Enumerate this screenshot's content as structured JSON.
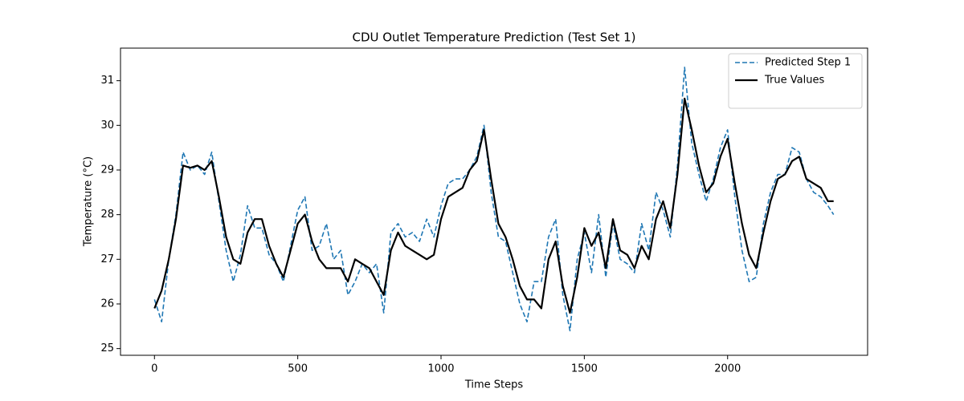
{
  "chart_data": {
    "type": "line",
    "title": "CDU Outlet Temperature Prediction (Test Set 1)",
    "x_label": "Time Steps",
    "y_label": "Temperature (°C)",
    "x": [
      0,
      25,
      50,
      75,
      100,
      125,
      150,
      175,
      200,
      225,
      250,
      275,
      300,
      325,
      350,
      375,
      400,
      425,
      450,
      475,
      500,
      525,
      550,
      575,
      600,
      625,
      650,
      675,
      700,
      725,
      750,
      775,
      800,
      825,
      850,
      875,
      900,
      925,
      950,
      975,
      1000,
      1025,
      1050,
      1075,
      1100,
      1125,
      1150,
      1175,
      1200,
      1225,
      1250,
      1275,
      1300,
      1325,
      1350,
      1375,
      1400,
      1425,
      1450,
      1475,
      1500,
      1525,
      1550,
      1575,
      1600,
      1625,
      1650,
      1675,
      1700,
      1725,
      1750,
      1775,
      1800,
      1825,
      1850,
      1875,
      1900,
      1925,
      1950,
      1975,
      2000,
      2025,
      2050,
      2075,
      2100,
      2125,
      2150,
      2175,
      2200,
      2225,
      2250,
      2275,
      2300,
      2325,
      2350,
      2370
    ],
    "series": [
      {
        "name": "Predicted Step 1",
        "color": "#1f77b4",
        "linestyle": "dashed",
        "linewidth": 1.6,
        "values": [
          26.1,
          25.6,
          27.0,
          28.0,
          29.4,
          29.0,
          29.1,
          28.9,
          29.4,
          28.3,
          27.2,
          26.5,
          27.1,
          28.2,
          27.7,
          27.7,
          27.1,
          26.9,
          26.5,
          27.3,
          28.1,
          28.4,
          27.2,
          27.3,
          27.8,
          27.0,
          27.2,
          26.2,
          26.5,
          26.9,
          26.7,
          26.9,
          25.8,
          27.6,
          27.8,
          27.5,
          27.6,
          27.4,
          27.9,
          27.5,
          28.2,
          28.7,
          28.8,
          28.8,
          29.0,
          29.3,
          30.0,
          28.5,
          27.5,
          27.4,
          26.7,
          26.0,
          25.6,
          26.5,
          26.5,
          27.5,
          27.9,
          26.2,
          25.4,
          27.0,
          27.6,
          26.7,
          28.0,
          26.6,
          27.8,
          27.0,
          26.9,
          26.7,
          27.8,
          27.2,
          28.5,
          28.1,
          27.5,
          29.1,
          31.3,
          29.6,
          28.9,
          28.3,
          28.8,
          29.5,
          29.9,
          28.4,
          27.2,
          26.5,
          26.6,
          27.8,
          28.5,
          28.9,
          28.9,
          29.5,
          29.4,
          28.8,
          28.5,
          28.4,
          28.2,
          28.0
        ]
      },
      {
        "name": "True Values",
        "color": "#000000",
        "linestyle": "solid",
        "linewidth": 2.2,
        "values": [
          25.9,
          26.3,
          27.0,
          27.9,
          29.1,
          29.05,
          29.1,
          29.0,
          29.2,
          28.4,
          27.5,
          27.0,
          26.9,
          27.6,
          27.9,
          27.9,
          27.3,
          26.9,
          26.6,
          27.2,
          27.8,
          28.0,
          27.4,
          27.0,
          26.8,
          26.8,
          26.8,
          26.5,
          27.0,
          26.9,
          26.8,
          26.5,
          26.2,
          27.2,
          27.6,
          27.3,
          27.2,
          27.1,
          27.0,
          27.1,
          27.9,
          28.4,
          28.5,
          28.6,
          29.0,
          29.2,
          29.9,
          28.8,
          27.8,
          27.5,
          27.0,
          26.4,
          26.1,
          26.1,
          25.9,
          27.0,
          27.4,
          26.4,
          25.8,
          26.6,
          27.7,
          27.3,
          27.6,
          26.8,
          27.9,
          27.2,
          27.1,
          26.8,
          27.3,
          27.0,
          27.9,
          28.3,
          27.7,
          28.9,
          30.6,
          29.9,
          29.1,
          28.5,
          28.7,
          29.3,
          29.7,
          28.7,
          27.8,
          27.1,
          26.8,
          27.6,
          28.3,
          28.8,
          28.9,
          29.2,
          29.3,
          28.8,
          28.7,
          28.6,
          28.3,
          28.3
        ]
      }
    ],
    "xlim": [
      -118.5,
      2488.5
    ],
    "xticks": [
      0,
      500,
      1000,
      1500,
      2000
    ],
    "ylim": [
      24.85,
      31.73
    ],
    "yticks": [
      25,
      26,
      27,
      28,
      29,
      30,
      31
    ],
    "legend": "upper right",
    "grid": false
  }
}
